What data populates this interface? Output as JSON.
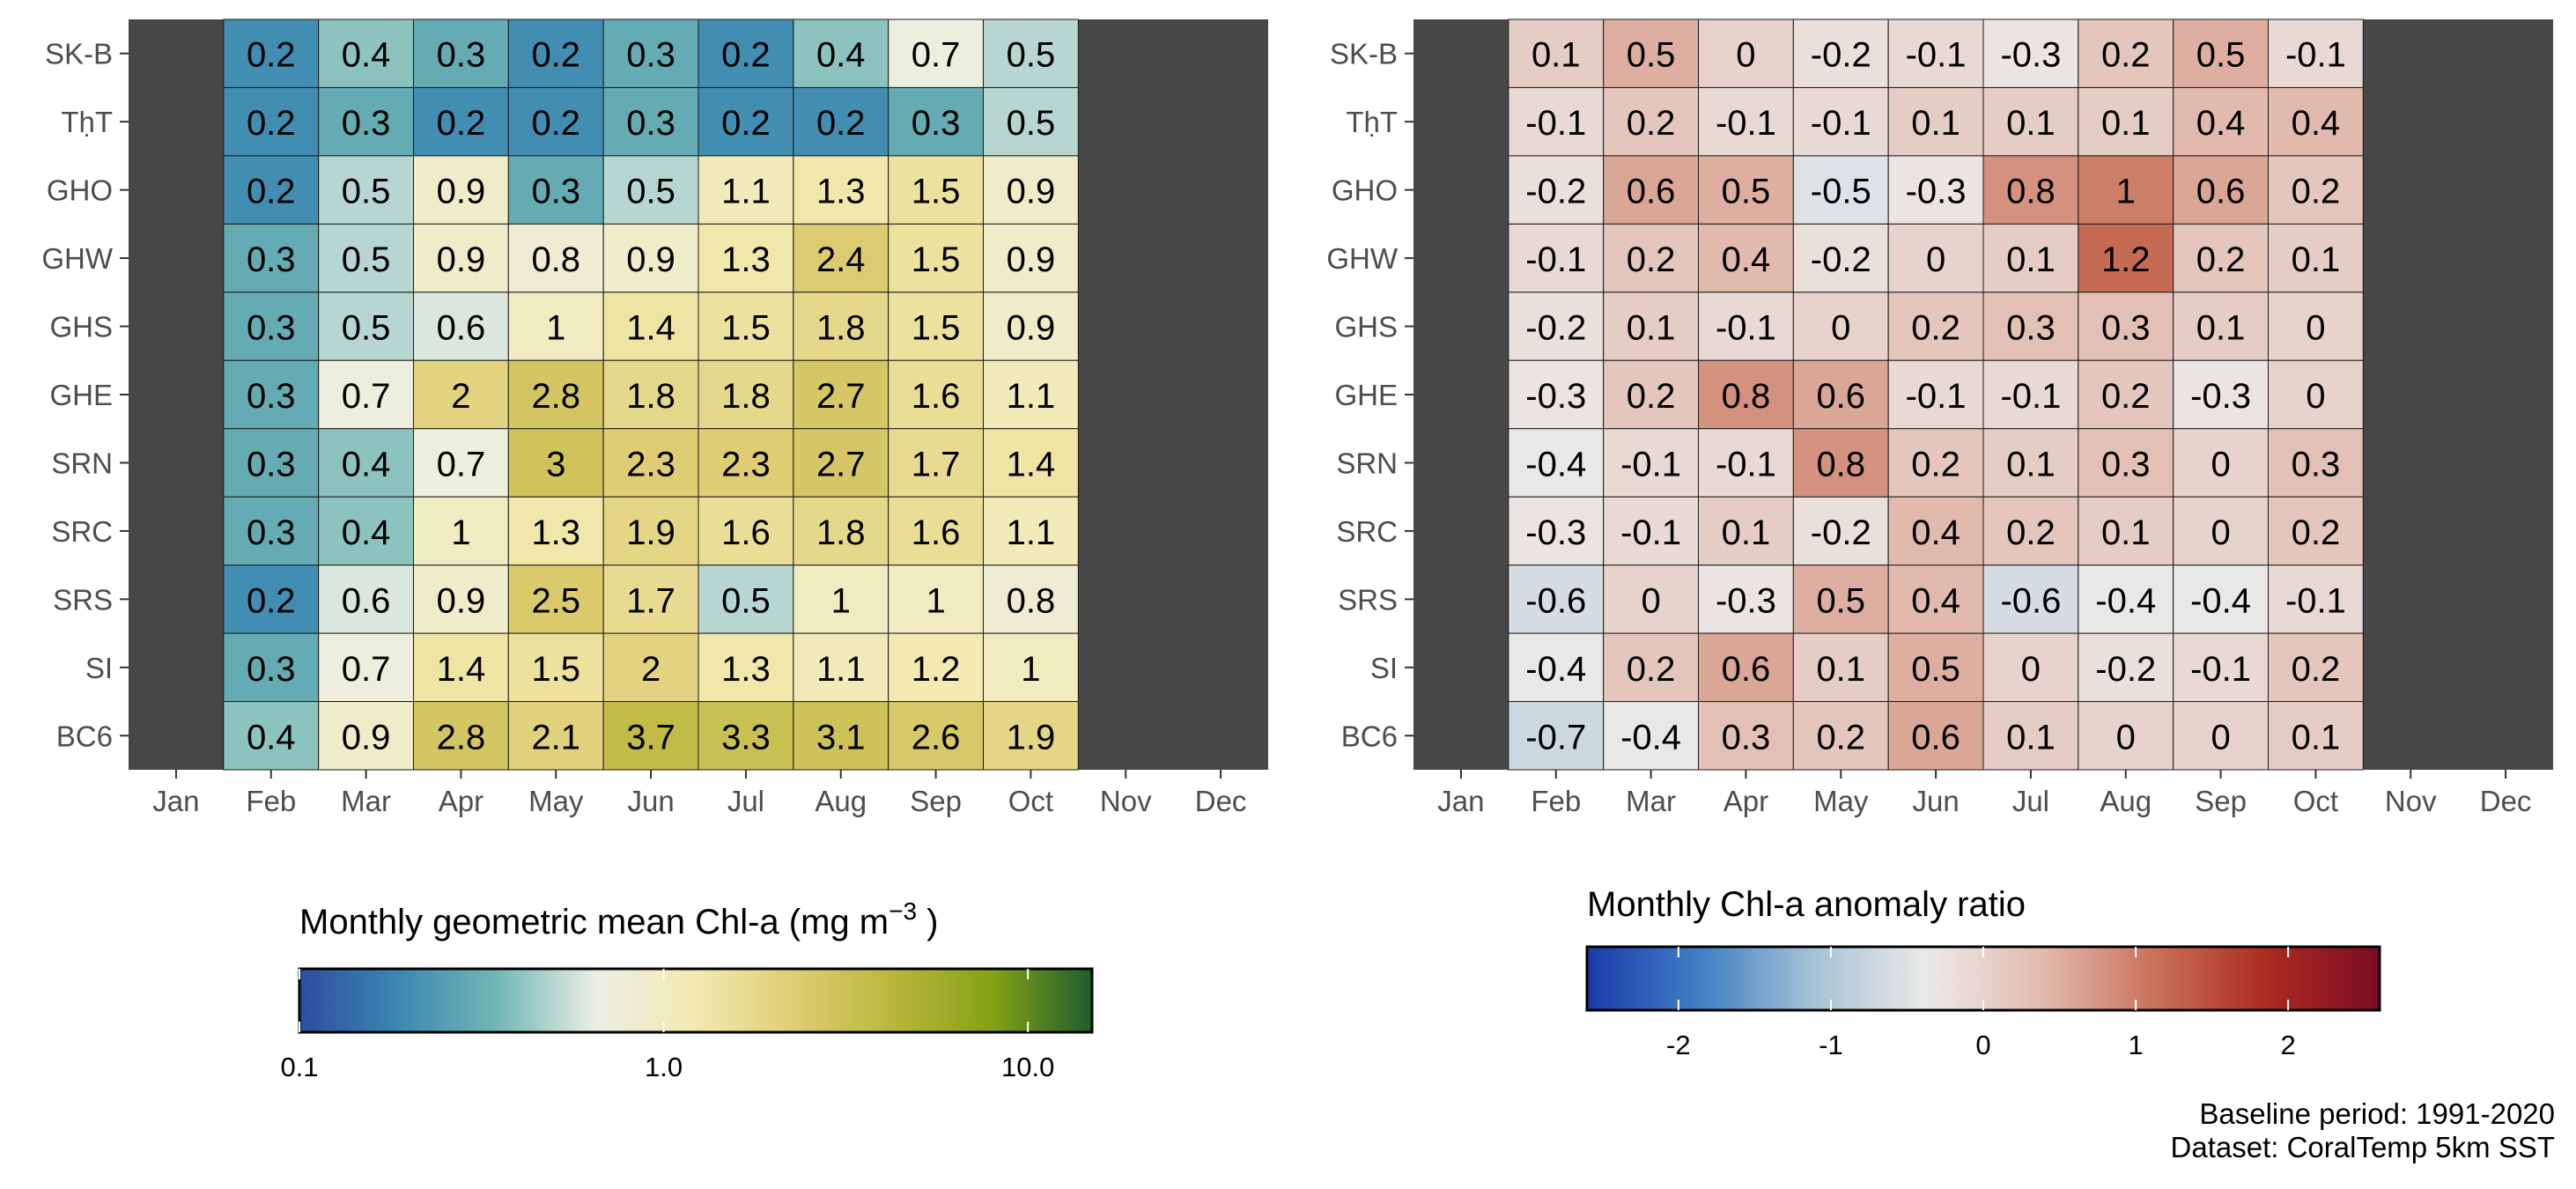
{
  "chart_data": [
    {
      "type": "heatmap",
      "title": "",
      "xlabel": "",
      "ylabel": "",
      "x_categories": [
        "Jan",
        "Feb",
        "Mar",
        "Apr",
        "May",
        "Jun",
        "Jul",
        "Aug",
        "Sep",
        "Oct",
        "Nov",
        "Dec"
      ],
      "y_categories": [
        "SK-B",
        "TḥT",
        "GHO",
        "GHW",
        "GHS",
        "GHE",
        "SRN",
        "SRC",
        "SRS",
        "SI",
        "BC6"
      ],
      "data_months": [
        "Feb",
        "Mar",
        "Apr",
        "May",
        "Jun",
        "Jul",
        "Aug",
        "Sep",
        "Oct"
      ],
      "values": [
        [
          0.2,
          0.4,
          0.3,
          0.2,
          0.3,
          0.2,
          0.4,
          0.7,
          0.5
        ],
        [
          0.2,
          0.3,
          0.2,
          0.2,
          0.3,
          0.2,
          0.2,
          0.3,
          0.5
        ],
        [
          0.2,
          0.5,
          0.9,
          0.3,
          0.5,
          1.1,
          1.3,
          1.5,
          0.9
        ],
        [
          0.3,
          0.5,
          0.9,
          0.8,
          0.9,
          1.3,
          2.4,
          1.5,
          0.9
        ],
        [
          0.3,
          0.5,
          0.6,
          1,
          1.4,
          1.5,
          1.8,
          1.5,
          0.9
        ],
        [
          0.3,
          0.7,
          2,
          2.8,
          1.8,
          1.8,
          2.7,
          1.6,
          1.1
        ],
        [
          0.3,
          0.4,
          0.7,
          3,
          2.3,
          2.3,
          2.7,
          1.7,
          1.4
        ],
        [
          0.3,
          0.4,
          1,
          1.3,
          1.9,
          1.6,
          1.8,
          1.6,
          1.1
        ],
        [
          0.2,
          0.6,
          0.9,
          2.5,
          1.7,
          0.5,
          1,
          1,
          0.8
        ],
        [
          0.3,
          0.7,
          1.4,
          1.5,
          2,
          1.3,
          1.1,
          1.2,
          1
        ],
        [
          0.4,
          0.9,
          2.8,
          2.1,
          3.7,
          3.3,
          3.1,
          2.6,
          1.9
        ]
      ],
      "colorbar": {
        "title_main": "Monthly geometric mean Chl-a (mg m",
        "title_sup": "−3",
        "title_end": " )",
        "scale": "log",
        "range": [
          0.1,
          15
        ],
        "ticks": [
          0.1,
          1.0,
          10.0
        ],
        "tick_labels": [
          "0.1",
          "1.0",
          "10.0"
        ],
        "colors": [
          "#2c4d9e",
          "#3c88b2",
          "#72b7b5",
          "#eceee3",
          "#f2eab0",
          "#dfcd74",
          "#b9b63b",
          "#84a116",
          "#1e5e2c"
        ]
      },
      "missing_color": "#474747"
    },
    {
      "type": "heatmap",
      "title": "",
      "xlabel": "",
      "ylabel": "",
      "x_categories": [
        "Jan",
        "Feb",
        "Mar",
        "Apr",
        "May",
        "Jun",
        "Jul",
        "Aug",
        "Sep",
        "Oct",
        "Nov",
        "Dec"
      ],
      "y_categories": [
        "SK-B",
        "TḥT",
        "GHO",
        "GHW",
        "GHS",
        "GHE",
        "SRN",
        "SRC",
        "SRS",
        "SI",
        "BC6"
      ],
      "data_months": [
        "Feb",
        "Mar",
        "Apr",
        "May",
        "Jun",
        "Jul",
        "Aug",
        "Sep",
        "Oct"
      ],
      "values": [
        [
          0.1,
          0.5,
          0,
          -0.2,
          -0.1,
          -0.3,
          0.2,
          0.5,
          -0.1
        ],
        [
          -0.1,
          0.2,
          -0.1,
          -0.1,
          0.1,
          0.1,
          0.1,
          0.4,
          0.4
        ],
        [
          -0.2,
          0.6,
          0.5,
          -0.5,
          -0.3,
          0.8,
          1,
          0.6,
          0.2
        ],
        [
          -0.1,
          0.2,
          0.4,
          -0.2,
          0,
          0.1,
          1.2,
          0.2,
          0.1
        ],
        [
          -0.2,
          0.1,
          -0.1,
          0,
          0.2,
          0.3,
          0.3,
          0.1,
          0
        ],
        [
          -0.3,
          0.2,
          0.8,
          0.6,
          -0.1,
          -0.1,
          0.2,
          -0.3,
          0
        ],
        [
          -0.4,
          -0.1,
          -0.1,
          0.8,
          0.2,
          0.1,
          0.3,
          0,
          0.3
        ],
        [
          -0.3,
          -0.1,
          0.1,
          -0.2,
          0.4,
          0.2,
          0.1,
          0,
          0.2
        ],
        [
          -0.6,
          0,
          -0.3,
          0.5,
          0.4,
          -0.6,
          -0.4,
          -0.4,
          -0.1
        ],
        [
          -0.4,
          0.2,
          0.6,
          0.1,
          0.5,
          0,
          -0.2,
          -0.1,
          0.2
        ],
        [
          -0.7,
          -0.4,
          0.3,
          0.2,
          0.6,
          0.1,
          0,
          0,
          0.1
        ]
      ],
      "colorbar": {
        "title_main": "Monthly Chl-a anomaly ratio",
        "title_sup": "",
        "title_end": "",
        "scale": "linear",
        "range": [
          -2.6,
          2.6
        ],
        "ticks": [
          -2,
          -1,
          0,
          1,
          2
        ],
        "tick_labels": [
          "-2",
          "-1",
          "0",
          "1",
          "2"
        ],
        "colors": [
          "#1c3bac",
          "#3f7fc3",
          "#a6c3d4",
          "#ebe9e8",
          "#e2bcb0",
          "#c9735a",
          "#ad2b1f",
          "#7a0a26"
        ]
      },
      "missing_color": "#474747"
    }
  ],
  "footer": {
    "baseline": "Baseline period: 1991-2020",
    "dataset": "Dataset: CoralTemp 5km SST"
  }
}
